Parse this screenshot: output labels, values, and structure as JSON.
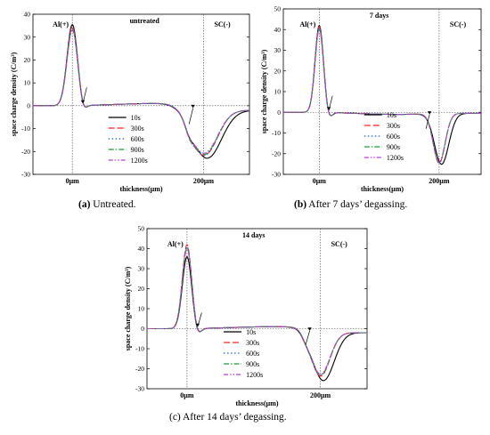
{
  "chart_data": [
    {
      "type": "line",
      "panel_letter": "(a)",
      "caption_text": " Untreated.",
      "title": "untreated",
      "ylabel": "space charge density (C/m³)",
      "xlabel": "thickness(μm)",
      "x_tick_labels": [
        "0μm",
        "200μm"
      ],
      "ylim": [
        -30,
        40
      ],
      "yticks": [
        -30,
        -20,
        -10,
        0,
        10,
        20,
        30,
        40
      ],
      "xlim": [
        -60,
        270
      ],
      "annotations": [
        "Al(+)",
        "SC(-)"
      ],
      "legend": [
        "10s",
        "300s",
        "600s",
        "900s",
        "1200s"
      ],
      "anode": {
        "x": 0,
        "peaks": [
          35.5,
          34.5,
          34,
          33.5,
          33
        ],
        "width": 8
      },
      "cathode": {
        "x": 200,
        "peaks": [
          -22.5,
          -21.5,
          -21.5,
          -21,
          -20.5
        ],
        "width": 20
      },
      "near_anode_dip": -3,
      "near_cathode_dip": -3,
      "middle_level": 1,
      "right_level": -2
    },
    {
      "type": "line",
      "panel_letter": "(b)",
      "caption_text": " After 7 days’ degassing.",
      "title": "7 days",
      "ylabel": "space charge density (C/m³)",
      "xlabel": "thickness(μm)",
      "x_tick_labels": [
        "0μm",
        "200μm"
      ],
      "ylim": [
        -30,
        50
      ],
      "yticks": [
        -30,
        -20,
        -10,
        0,
        10,
        20,
        30,
        40,
        50
      ],
      "xlim": [
        -60,
        270
      ],
      "annotations": [
        "Al(+)",
        "SC(-)"
      ],
      "legend": [
        "10s",
        "300s",
        "600s",
        "900s",
        "1200s"
      ],
      "anode": {
        "x": 0,
        "peaks": [
          42,
          41.5,
          41,
          40.5,
          40
        ],
        "width": 7
      },
      "cathode": {
        "x": 200,
        "peaks": [
          -25,
          -24.5,
          -24.5,
          -24,
          -24
        ],
        "width": 10
      },
      "near_anode_dip": -3,
      "near_cathode_dip": 0,
      "middle_level": -1,
      "right_level": -0.5
    },
    {
      "type": "line",
      "panel_letter": "(c)",
      "caption_text": " After 14 days’ degassing.",
      "title": "14 days",
      "ylabel": "space charge density (C/m³)",
      "xlabel": "thickness(μm)",
      "x_tick_labels": [
        "0μm",
        "200μm"
      ],
      "ylim": [
        -30,
        50
      ],
      "yticks": [
        -30,
        -20,
        -10,
        0,
        10,
        20,
        30,
        40,
        50
      ],
      "xlim": [
        -60,
        270
      ],
      "annotations": [
        "Al(+)",
        "SC(-)"
      ],
      "legend": [
        "10s",
        "300s",
        "600s",
        "900s",
        "1200s"
      ],
      "anode": {
        "x": 0,
        "peaks": [
          36,
          42,
          41,
          40.5,
          40
        ],
        "width": 7
      },
      "cathode": {
        "x": 200,
        "peaks": [
          -25.5,
          -23.5,
          -23,
          -23,
          -22.5
        ],
        "width": 14
      },
      "near_anode_dip": -3,
      "near_cathode_dip": -2,
      "middle_level": 1,
      "right_level": -2
    }
  ],
  "series_colors": [
    "#000000",
    "#ff2020",
    "#1f5fd9",
    "#1e9a3e",
    "#b040d8"
  ],
  "series_dashes": [
    "",
    "7,3",
    "1.5,2.5",
    "6,2,1.5,2",
    "5,2,1.5,2,1.5,2"
  ]
}
